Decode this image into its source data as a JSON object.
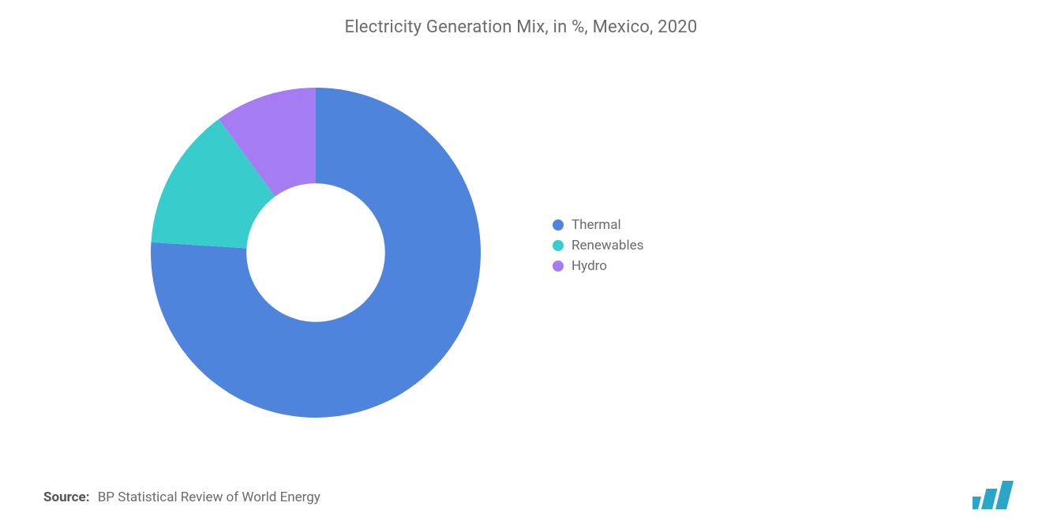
{
  "chart": {
    "type": "donut",
    "title": "Electricity Generation Mix, in %, Mexico, 2020",
    "title_fontsize": 22,
    "title_color": "#6b6b6b",
    "background_color": "#ffffff",
    "inner_radius_pct": 42,
    "outer_radius_pct": 100,
    "start_angle_deg": 90,
    "direction": "clockwise",
    "series": [
      {
        "label": "Thermal",
        "value": 76,
        "color": "#4f84dc"
      },
      {
        "label": "Renewables",
        "value": 14,
        "color": "#39cccc"
      },
      {
        "label": "Hydro",
        "value": 10,
        "color": "#a57cf2"
      }
    ],
    "legend": {
      "position": "right",
      "fontsize": 17,
      "text_color": "#6b6b6b",
      "marker_shape": "circle",
      "marker_size": 14
    }
  },
  "source": {
    "label": "Source:",
    "text": "BP Statistical Review of World Energy",
    "fontsize": 17,
    "color": "#6b6b6b"
  },
  "logo": {
    "bar_color": "#2aa6c8",
    "bar_count": 3
  }
}
